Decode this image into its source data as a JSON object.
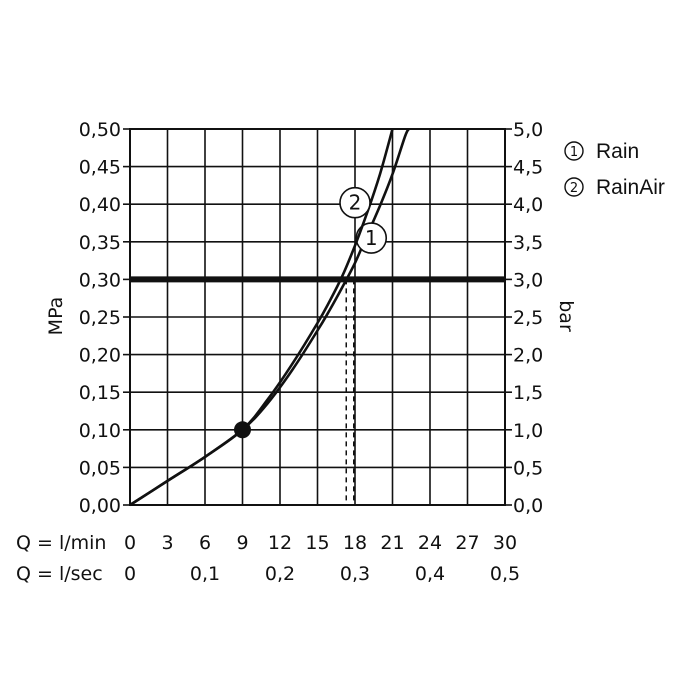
{
  "chart_data": {
    "type": "line",
    "title": "",
    "y_left": {
      "label": "MPa",
      "ticks": [
        "0,00",
        "0,05",
        "0,10",
        "0,15",
        "0,20",
        "0,25",
        "0,30",
        "0,35",
        "0,40",
        "0,45",
        "0,50"
      ],
      "range": [
        0,
        0.5
      ]
    },
    "y_right": {
      "label": "bar",
      "ticks": [
        "0,0",
        "0,5",
        "1,0",
        "1,5",
        "2,0",
        "2,5",
        "3,0",
        "3,5",
        "4,0",
        "4,5",
        "5,0"
      ],
      "range": [
        0,
        5
      ]
    },
    "x_primary": {
      "label": "Q = l/min",
      "ticks": [
        "0",
        "3",
        "6",
        "9",
        "12",
        "15",
        "18",
        "21",
        "24",
        "27",
        "30"
      ],
      "range": [
        0,
        30
      ]
    },
    "x_secondary": {
      "label": "Q = l/sec",
      "ticks": [
        "0",
        "0,1",
        "0,2",
        "0,3",
        "0,4",
        "0,5"
      ],
      "values": [
        0,
        0.1,
        0.2,
        0.3,
        0.4,
        0.5
      ]
    },
    "grid": true,
    "reference_line": {
      "y": 0.3
    },
    "marker_point": {
      "x": 9,
      "y": 0.1
    },
    "legend": {
      "position": "top-right",
      "items": [
        {
          "symbol": "1",
          "label": "Rain"
        },
        {
          "symbol": "2",
          "label": "RainAir"
        }
      ]
    },
    "series": [
      {
        "name": "Rain",
        "label_symbol": "1",
        "points": [
          [
            0,
            0
          ],
          [
            3,
            0.032
          ],
          [
            6,
            0.064
          ],
          [
            9,
            0.1
          ],
          [
            11,
            0.135
          ],
          [
            13,
            0.18
          ],
          [
            15,
            0.232
          ],
          [
            16,
            0.26
          ],
          [
            17,
            0.29
          ],
          [
            18,
            0.322
          ],
          [
            19,
            0.36
          ],
          [
            20,
            0.398
          ],
          [
            21,
            0.44
          ],
          [
            22,
            0.49
          ],
          [
            22.3,
            0.5
          ]
        ]
      },
      {
        "name": "RainAir",
        "label_symbol": "2",
        "points": [
          [
            0,
            0
          ],
          [
            3,
            0.032
          ],
          [
            6,
            0.064
          ],
          [
            9,
            0.1
          ],
          [
            11,
            0.14
          ],
          [
            13,
            0.188
          ],
          [
            15,
            0.242
          ],
          [
            16,
            0.272
          ],
          [
            17,
            0.305
          ],
          [
            18,
            0.345
          ],
          [
            19,
            0.39
          ],
          [
            20,
            0.44
          ],
          [
            21,
            0.5
          ]
        ]
      }
    ],
    "intersections_x": [
      17.3,
      17.9
    ]
  }
}
